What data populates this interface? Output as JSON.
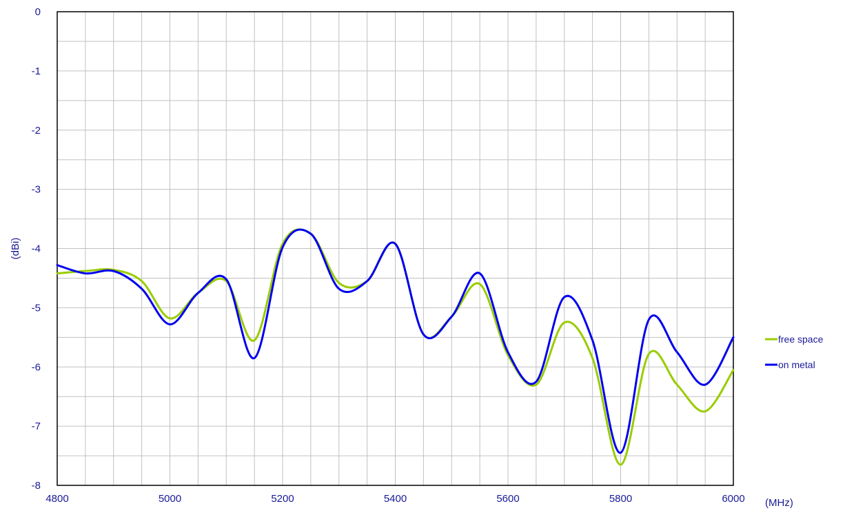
{
  "chart_data": {
    "type": "line",
    "title": "",
    "xlabel": "(MHz)",
    "ylabel": "(dBi)",
    "xlim": [
      4800,
      6000
    ],
    "ylim": [
      -8,
      0
    ],
    "x_major_ticks": [
      4800,
      5000,
      5200,
      5400,
      5600,
      5800,
      6000
    ],
    "y_major_ticks": [
      0,
      -1,
      -2,
      -3,
      -4,
      -5,
      -6,
      -7,
      -8
    ],
    "x_tick_labels": [
      "4800",
      "5000",
      "5200",
      "5400",
      "5600",
      "5800",
      "6000"
    ],
    "y_tick_labels": [
      "0",
      "-1",
      "-2",
      "-3",
      "-4",
      "-5",
      "-6",
      "-7",
      "-8"
    ],
    "x_minor_step": 50,
    "y_minor_step": 0.5,
    "grid": true,
    "legend_position": "right",
    "series": [
      {
        "name": "free space",
        "color": "#99cc00",
        "x": [
          4800,
          4850,
          4900,
          4950,
          5000,
          5050,
          5100,
          5150,
          5200,
          5250,
          5300,
          5350,
          5400,
          5450,
          5500,
          5550,
          5600,
          5650,
          5700,
          5750,
          5800,
          5850,
          5900,
          5950,
          6000
        ],
        "y": [
          -4.42,
          -4.38,
          -4.36,
          -4.55,
          -5.18,
          -4.75,
          -4.55,
          -5.55,
          -3.92,
          -3.75,
          -4.58,
          -4.55,
          -3.92,
          -5.45,
          -5.15,
          -4.6,
          -5.8,
          -6.3,
          -5.25,
          -5.85,
          -7.65,
          -5.78,
          -6.3,
          -6.75,
          -6.05
        ]
      },
      {
        "name": "on metal",
        "color": "#0000ee",
        "x": [
          4800,
          4850,
          4900,
          4950,
          5000,
          5050,
          5100,
          5150,
          5200,
          5250,
          5300,
          5350,
          5400,
          5450,
          5500,
          5550,
          5600,
          5650,
          5700,
          5750,
          5800,
          5850,
          5900,
          5950,
          6000
        ],
        "y": [
          -4.28,
          -4.42,
          -4.38,
          -4.68,
          -5.28,
          -4.75,
          -4.52,
          -5.85,
          -3.98,
          -3.75,
          -4.68,
          -4.55,
          -3.92,
          -5.45,
          -5.15,
          -4.42,
          -5.75,
          -6.25,
          -4.82,
          -5.55,
          -7.45,
          -5.2,
          -5.75,
          -6.3,
          -5.5
        ]
      }
    ]
  }
}
